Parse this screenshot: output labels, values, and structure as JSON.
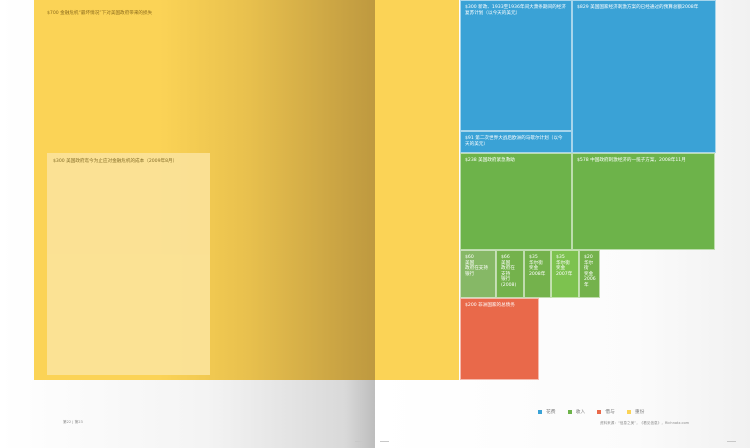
{
  "chart_data": {
    "type": "treemap",
    "title": "",
    "colors": {
      "cost": "#3aa2d6",
      "income": "#6db34a",
      "loan": "#e9694a",
      "overlap": "#fbd356"
    },
    "legend": {
      "placement": "bottom-right",
      "items": [
        {
          "label": "花费",
          "color": "#3aa2d6"
        },
        {
          "label": "收入",
          "color": "#6db34a"
        },
        {
          "label": "借与",
          "color": "#e9694a"
        },
        {
          "label": "重份",
          "color": "#fbd356"
        }
      ]
    },
    "cells": [
      {
        "id": "main",
        "label": "$700 金融危机“最坏情况”下对美国政府带来的损失",
        "value": 700,
        "category": "overlap"
      },
      {
        "id": "inner",
        "label": "$300 美国政府迄今为止应对金融危机的成本（2009年8月）",
        "value": 300,
        "category": "overlap"
      },
      {
        "id": "c1",
        "label": "$300 新政、1933至1936年间大萧条期间的经济复苏计划（以今天的美元）",
        "value": 300,
        "category": "cost"
      },
      {
        "id": "c2",
        "label": "$829 美国国家经济刺激方案的已经通过的预算总额2008年",
        "value": 829,
        "category": "cost"
      },
      {
        "id": "c3",
        "label": "$91 第二次世界大战后欧洲的马歇尔计划（以今天的美元）",
        "value": 91,
        "category": "cost"
      },
      {
        "id": "i1",
        "label": "$238 美国政府紧急救助",
        "value": 238,
        "category": "income"
      },
      {
        "id": "i2",
        "label": "$578 中国政府刺激经济的一揽子方案，2008年11月",
        "value": 578,
        "category": "income"
      },
      {
        "id": "s1",
        "label": "$60\n美国\n政府在支持\n银行",
        "value": 60,
        "category": "income"
      },
      {
        "id": "s2",
        "label": "$66\n美国\n政府在支持\n银行\n(2008)",
        "value": 66,
        "category": "income"
      },
      {
        "id": "s3",
        "label": "$35\n华尔街\n奖金\n2008年",
        "value": 35,
        "category": "income"
      },
      {
        "id": "s4",
        "label": "$35\n华尔街\n奖金\n2007年",
        "value": 35,
        "category": "income"
      },
      {
        "id": "s5",
        "label": "$20\n华尔街\n奖金\n2006年",
        "value": 20,
        "category": "income"
      },
      {
        "id": "l1",
        "label": "$200 非洲国家的总债务",
        "value": 200,
        "category": "loan"
      }
    ]
  },
  "page": {
    "page_number_left": "第22 | 第23",
    "source": "资料来源：“信息之美”，《看见信息》，Richnotz.com"
  }
}
